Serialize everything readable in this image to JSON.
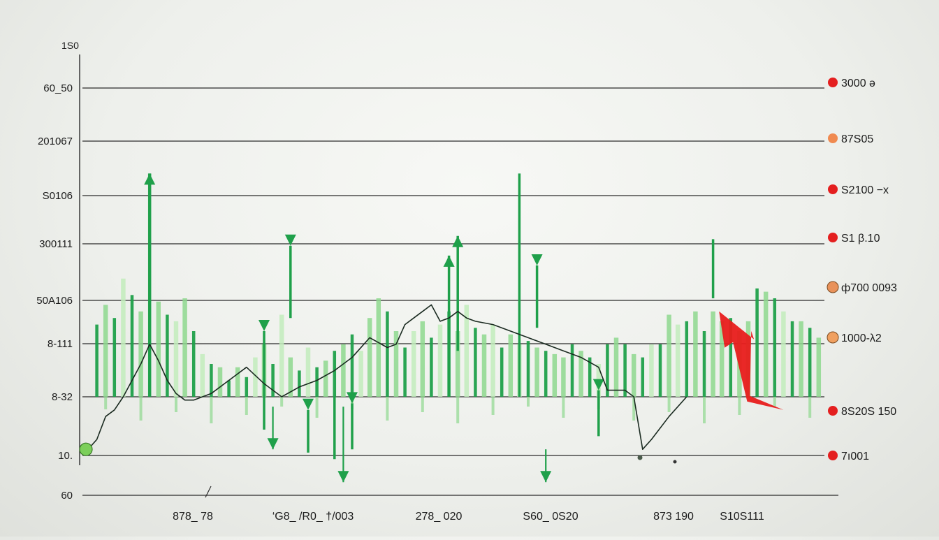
{
  "chart_data": {
    "type": "bar",
    "title": "",
    "xlabel": "",
    "ylabel": "",
    "grid": true,
    "legend": "none",
    "y_top_label": "1S0",
    "y_labels": [
      "60_50",
      "201067",
      "S0106",
      "300111",
      "50A106",
      "8-111",
      "8-32",
      "10.",
      "60"
    ],
    "right_labels": [
      "3000 ə",
      "87S05",
      "S2100 −x",
      "S1 β.10",
      "ф700 0093",
      "1000-λ2",
      "8S20S 150",
      "7ı001"
    ],
    "right_marker_colors": [
      "#e41f1f",
      "#f08a50",
      "#e41f1f",
      "#e41f1f",
      "#e9925a",
      "#f0a060",
      "#e41f1f",
      "#e41f1f"
    ],
    "x_labels": [
      "878_ 78",
      "‘G8_ /R0_ †/003",
      "278_ 020",
      "S60_ 0S20",
      "873 190",
      "S10S111"
    ],
    "colors": {
      "bar_dark": "#1fa04a",
      "bar_light": "#8ed88e",
      "bar_pale": "#c2ecbc",
      "trend": "#1a2a20",
      "red_arrow": "#e81c1c",
      "start_marker": "#7ccf5a"
    },
    "bars": [
      {
        "x": 1,
        "h": 2.2,
        "d": "d"
      },
      {
        "x": 2,
        "h": 2.8,
        "d": "l"
      },
      {
        "x": 3,
        "h": 2.4,
        "d": "d"
      },
      {
        "x": 4,
        "h": 3.6,
        "d": "l"
      },
      {
        "x": 5,
        "h": 3.1,
        "d": "d"
      },
      {
        "x": 6,
        "h": 2.6,
        "d": "l"
      },
      {
        "x": 7,
        "h": 6.8,
        "d": "d"
      },
      {
        "x": 8,
        "h": 2.9,
        "d": "l"
      },
      {
        "x": 9,
        "h": 2.5,
        "d": "d"
      },
      {
        "x": 10,
        "h": 2.3,
        "d": "l"
      },
      {
        "x": 11,
        "h": 3.0,
        "d": "l"
      },
      {
        "x": 12,
        "h": 2.0,
        "d": "d"
      },
      {
        "x": 13,
        "h": 1.3,
        "d": "l"
      },
      {
        "x": 14,
        "h": 1.0,
        "d": "d"
      },
      {
        "x": 15,
        "h": 0.9,
        "d": "l"
      },
      {
        "x": 16,
        "h": 0.5,
        "d": "d"
      },
      {
        "x": 17,
        "h": 0.9,
        "d": "l"
      },
      {
        "x": 18,
        "h": 0.6,
        "d": "d"
      },
      {
        "x": 19,
        "h": 1.2,
        "d": "l"
      },
      {
        "x": 20,
        "h": 1.6,
        "d": "l"
      },
      {
        "x": 21,
        "h": 1.0,
        "d": "d"
      },
      {
        "x": 22,
        "h": 2.5,
        "d": "l"
      },
      {
        "x": 23,
        "h": 1.2,
        "d": "l"
      },
      {
        "x": 24,
        "h": 0.8,
        "d": "d"
      },
      {
        "x": 25,
        "h": 1.5,
        "d": "l"
      },
      {
        "x": 26,
        "h": 0.9,
        "d": "d"
      },
      {
        "x": 27,
        "h": 1.1,
        "d": "l"
      },
      {
        "x": 28,
        "h": 1.4,
        "d": "d"
      },
      {
        "x": 29,
        "h": 1.6,
        "d": "l"
      },
      {
        "x": 30,
        "h": 1.9,
        "d": "d"
      },
      {
        "x": 31,
        "h": 1.4,
        "d": "l"
      },
      {
        "x": 32,
        "h": 2.4,
        "d": "l"
      },
      {
        "x": 33,
        "h": 3.0,
        "d": "l"
      },
      {
        "x": 34,
        "h": 2.6,
        "d": "d"
      },
      {
        "x": 35,
        "h": 2.0,
        "d": "l"
      },
      {
        "x": 36,
        "h": 1.5,
        "d": "d"
      },
      {
        "x": 37,
        "h": 2.0,
        "d": "l"
      },
      {
        "x": 38,
        "h": 2.3,
        "d": "l"
      },
      {
        "x": 39,
        "h": 1.8,
        "d": "d"
      },
      {
        "x": 40,
        "h": 2.2,
        "d": "l"
      },
      {
        "x": 41,
        "h": 2.6,
        "d": "d"
      },
      {
        "x": 42,
        "h": 2.0,
        "d": "l"
      },
      {
        "x": 43,
        "h": 2.8,
        "d": "l"
      },
      {
        "x": 44,
        "h": 2.1,
        "d": "d"
      },
      {
        "x": 45,
        "h": 1.9,
        "d": "l"
      },
      {
        "x": 46,
        "h": 2.2,
        "d": "l"
      },
      {
        "x": 47,
        "h": 1.5,
        "d": "d"
      },
      {
        "x": 48,
        "h": 1.9,
        "d": "l"
      },
      {
        "x": 49,
        "h": 1.6,
        "d": "l"
      },
      {
        "x": 50,
        "h": 1.7,
        "d": "d"
      },
      {
        "x": 51,
        "h": 1.5,
        "d": "l"
      },
      {
        "x": 52,
        "h": 1.4,
        "d": "d"
      },
      {
        "x": 53,
        "h": 1.3,
        "d": "l"
      },
      {
        "x": 54,
        "h": 1.2,
        "d": "l"
      },
      {
        "x": 55,
        "h": 1.6,
        "d": "d"
      },
      {
        "x": 56,
        "h": 1.4,
        "d": "l"
      },
      {
        "x": 57,
        "h": 1.2,
        "d": "d"
      },
      {
        "x": 58,
        "h": 1.0,
        "d": "l"
      },
      {
        "x": 59,
        "h": 1.6,
        "d": "d"
      },
      {
        "x": 60,
        "h": 1.8,
        "d": "l"
      },
      {
        "x": 61,
        "h": 1.6,
        "d": "d"
      },
      {
        "x": 62,
        "h": 1.3,
        "d": "l"
      },
      {
        "x": 63,
        "h": 1.2,
        "d": "d"
      },
      {
        "x": 64,
        "h": 1.6,
        "d": "l"
      },
      {
        "x": 65,
        "h": 1.6,
        "d": "d"
      },
      {
        "x": 66,
        "h": 2.5,
        "d": "l"
      },
      {
        "x": 67,
        "h": 2.2,
        "d": "l"
      },
      {
        "x": 68,
        "h": 2.3,
        "d": "d"
      },
      {
        "x": 69,
        "h": 2.6,
        "d": "l"
      },
      {
        "x": 70,
        "h": 2.0,
        "d": "d"
      },
      {
        "x": 71,
        "h": 2.6,
        "d": "l"
      },
      {
        "x": 72,
        "h": 2.3,
        "d": "l"
      },
      {
        "x": 73,
        "h": 2.4,
        "d": "d"
      },
      {
        "x": 74,
        "h": 2.0,
        "d": "l"
      },
      {
        "x": 75,
        "h": 2.3,
        "d": "l"
      },
      {
        "x": 76,
        "h": 3.3,
        "d": "d"
      },
      {
        "x": 77,
        "h": 3.2,
        "d": "l"
      },
      {
        "x": 78,
        "h": 3.0,
        "d": "d"
      },
      {
        "x": 79,
        "h": 2.6,
        "d": "l"
      },
      {
        "x": 80,
        "h": 2.3,
        "d": "d"
      },
      {
        "x": 81,
        "h": 2.3,
        "d": "l"
      },
      {
        "x": 82,
        "h": 2.1,
        "d": "d"
      },
      {
        "x": 83,
        "h": 1.8,
        "d": "l"
      }
    ],
    "spikes": [
      {
        "x": 7,
        "y1": 0,
        "y2": 6.8,
        "dir": "up"
      },
      {
        "x": 23,
        "y1": 2.4,
        "y2": 4.6,
        "dir": "down"
      },
      {
        "x": 20,
        "y1": -1.0,
        "y2": 2.0,
        "dir": "down"
      },
      {
        "x": 41,
        "y1": 0,
        "y2": 4.3,
        "dir": "up"
      },
      {
        "x": 42,
        "y1": 1.4,
        "y2": 4.9,
        "dir": "up"
      },
      {
        "x": 49,
        "y1": 0,
        "y2": 6.8,
        "dir": "none"
      },
      {
        "x": 51,
        "y1": 2.1,
        "y2": 4.0,
        "dir": "down"
      },
      {
        "x": 30,
        "y1": -1.6,
        "y2": -0.2,
        "dir": "down"
      },
      {
        "x": 25,
        "y1": -1.7,
        "y2": -0.4,
        "dir": "down"
      },
      {
        "x": 28,
        "y1": -1.9,
        "y2": 0,
        "dir": "none"
      },
      {
        "x": 71,
        "y1": 3.0,
        "y2": 4.8,
        "dir": "none"
      },
      {
        "x": 58,
        "y1": -1.2,
        "y2": 0.2,
        "dir": "down"
      }
    ],
    "trend_line": [
      [
        0,
        -1.6
      ],
      [
        1,
        -1.3
      ],
      [
        2,
        -0.6
      ],
      [
        3,
        -0.4
      ],
      [
        4,
        0
      ],
      [
        6,
        1.0
      ],
      [
        7,
        1.6
      ],
      [
        8,
        1.1
      ],
      [
        9,
        0.5
      ],
      [
        10,
        0.1
      ],
      [
        11,
        -0.1
      ],
      [
        12,
        -0.1
      ],
      [
        13,
        0
      ],
      [
        14,
        0.1
      ],
      [
        16,
        0.5
      ],
      [
        18,
        0.9
      ],
      [
        20,
        0.4
      ],
      [
        22,
        0.0
      ],
      [
        24,
        0.3
      ],
      [
        26,
        0.5
      ],
      [
        28,
        0.8
      ],
      [
        30,
        1.2
      ],
      [
        32,
        1.8
      ],
      [
        34,
        1.5
      ],
      [
        35,
        1.6
      ],
      [
        36,
        2.2
      ],
      [
        37,
        2.4
      ],
      [
        38,
        2.6
      ],
      [
        39,
        2.8
      ],
      [
        40,
        2.3
      ],
      [
        41,
        2.4
      ],
      [
        42,
        2.6
      ],
      [
        43,
        2.4
      ],
      [
        44,
        2.3
      ],
      [
        46,
        2.2
      ],
      [
        48,
        2.0
      ],
      [
        50,
        1.8
      ],
      [
        52,
        1.6
      ],
      [
        54,
        1.4
      ],
      [
        56,
        1.2
      ],
      [
        58,
        0.9
      ],
      [
        59,
        0.2
      ],
      [
        61,
        0.2
      ],
      [
        62,
        0.0
      ],
      [
        63,
        -1.6
      ],
      [
        64,
        -1.3
      ],
      [
        66,
        -0.6
      ],
      [
        68,
        0.0
      ]
    ],
    "down_arrows": [
      {
        "x": 21,
        "y_top": -0.3,
        "y_bot": -1.6
      },
      {
        "x": 29,
        "y_top": -0.3,
        "y_bot": -2.6
      },
      {
        "x": 52,
        "y_top": -1.6,
        "y_bot": -2.6
      }
    ],
    "red_arrow": {
      "from": [
        79,
        -0.4
      ],
      "to": [
        72,
        2.6
      ]
    }
  }
}
